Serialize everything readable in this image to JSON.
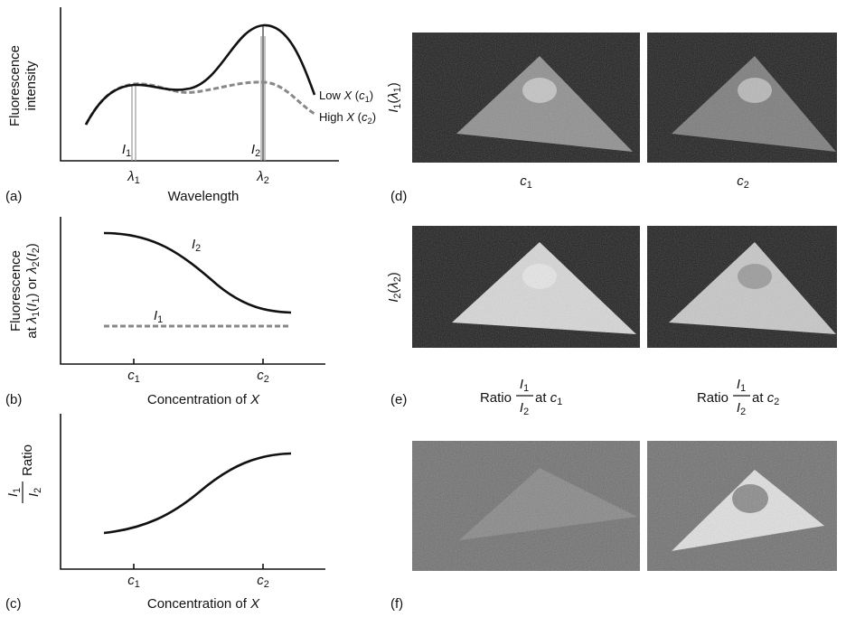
{
  "panel_a": {
    "label": "(a)",
    "y_axis_label": [
      "Fluorescence",
      "intensity"
    ],
    "x_axis_label": "Wavelength",
    "x_tick_1": [
      "λ",
      "1"
    ],
    "x_tick_2": [
      "λ",
      "2"
    ],
    "line_label_1": [
      "I",
      "1"
    ],
    "line_label_2": [
      "I",
      "2"
    ],
    "curve_low": [
      "Low ",
      "X",
      " (",
      "c",
      "1",
      ")"
    ],
    "curve_high": [
      "High ",
      "X",
      " (",
      "c",
      "2",
      ")"
    ]
  },
  "panel_b": {
    "label": "(b)",
    "y_axis_label_line_1": "Fluorescence",
    "y_axis_label_line_2": [
      "at ",
      "λ",
      "1",
      "(",
      "I",
      "1",
      ") or ",
      "λ",
      "2",
      "(",
      "I",
      "2",
      ")"
    ],
    "x_axis_label": [
      "Concentration of ",
      "X"
    ],
    "x_tick_1": [
      "c",
      "1"
    ],
    "x_tick_2": [
      "c",
      "2"
    ],
    "curve_label_1": [
      "I",
      "1"
    ],
    "curve_label_2": [
      "I",
      "2"
    ]
  },
  "panel_c": {
    "label": "(c)",
    "y_axis_label": "Ratio",
    "y_fraction_numerator": [
      "I",
      "1"
    ],
    "y_fraction_denominator": [
      "I",
      "2"
    ],
    "x_axis_label": [
      "Concentration of ",
      "X"
    ],
    "x_tick_1": [
      "c",
      "1"
    ],
    "x_tick_2": [
      "c",
      "2"
    ]
  },
  "panel_d": {
    "label": "(d)",
    "row_label": [
      "I",
      "1",
      "(",
      "λ",
      "1",
      ")"
    ],
    "column_label_1": [
      "c",
      "1"
    ],
    "column_label_2": [
      "c",
      "2"
    ]
  },
  "panel_e": {
    "label": "(e)",
    "row_label": [
      "I",
      "2",
      "(",
      "λ",
      "2",
      ")"
    ]
  },
  "ratio_captions": [
    {
      "before": "Ratio",
      "numerator": [
        "I",
        "1"
      ],
      "denominator": [
        "I",
        "2"
      ],
      "after": [
        " at ",
        "c",
        "1"
      ]
    },
    {
      "before": "Ratio",
      "numerator": [
        "I",
        "1"
      ],
      "denominator": [
        "I",
        "2"
      ],
      "after": [
        " at ",
        "c",
        "2"
      ]
    }
  ],
  "panel_f": {
    "label": "(f)"
  }
}
